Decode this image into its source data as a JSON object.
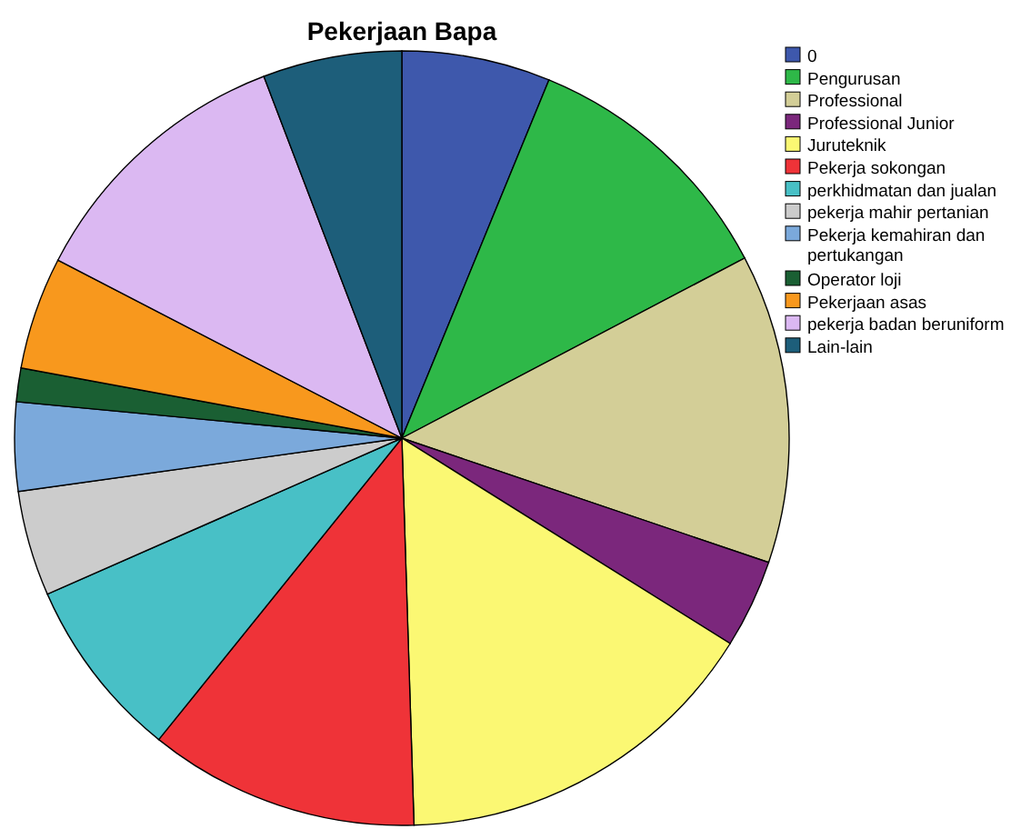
{
  "chart_data": {
    "type": "pie",
    "title": "Pekerjaan Bapa",
    "legend": "right",
    "categories": [
      "0",
      "Pengurusan",
      "Professional",
      "Professional Junior",
      "Juruteknik",
      "Pekerja sokongan",
      "perkhidmatan dan jualan",
      "pekerja mahir pertanian",
      "Pekerja kemahiran dan pertukangan",
      "Operator loji",
      "Pekerjaan asas",
      "pekerja badan beruniform",
      "Lain-lain"
    ],
    "values": [
      6.2,
      11.1,
      12.9,
      3.7,
      15.6,
      11.3,
      7.6,
      4.4,
      3.7,
      1.4,
      4.7,
      11.6,
      5.8
    ],
    "colors": [
      "#3e58ac",
      "#2eb848",
      "#d3ce97",
      "#7b277c",
      "#fbf873",
      "#ef3338",
      "#48c0c6",
      "#cccccc",
      "#7ba9db",
      "#1a5f33",
      "#f8981d",
      "#dbb8f2",
      "#1d5e7a"
    ]
  }
}
